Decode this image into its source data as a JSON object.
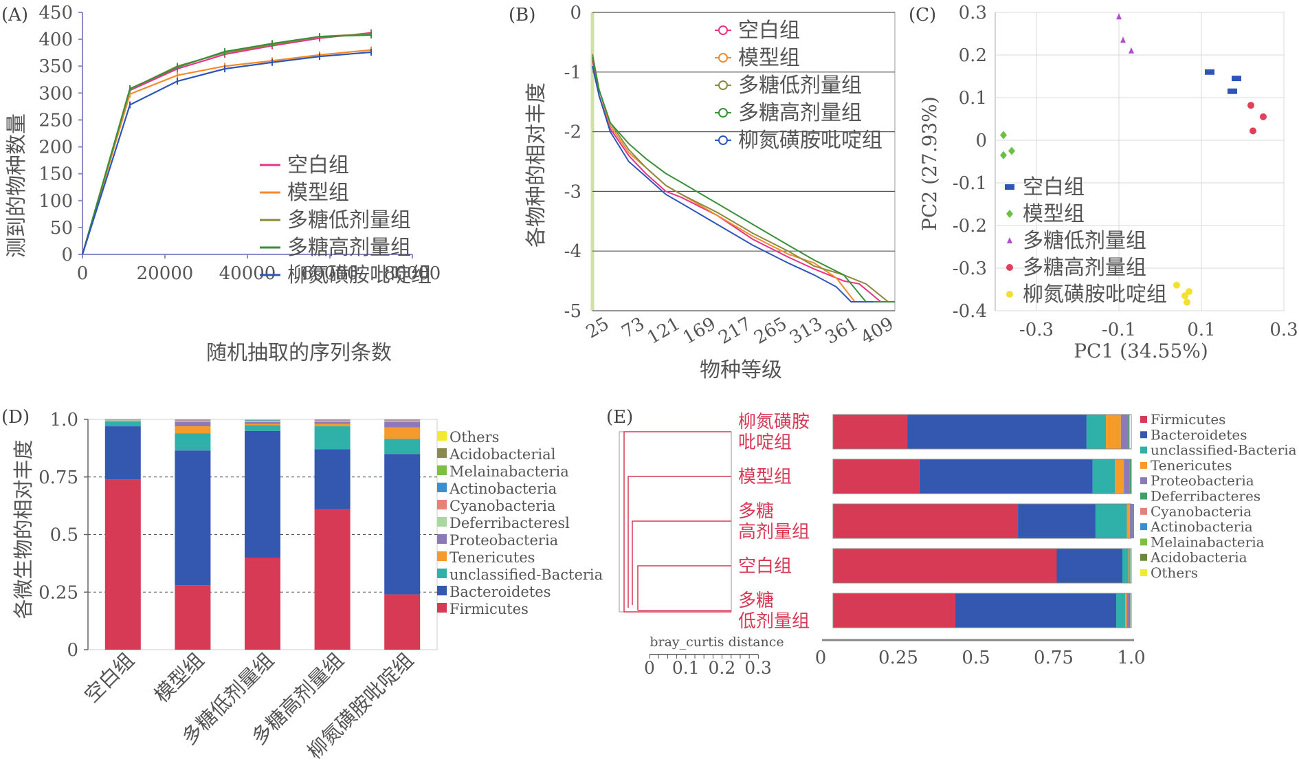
{
  "colors": {
    "空白组": "#e8338a",
    "模型组": "#f28a2e",
    "多糖低剂量组": "#8a8a3a",
    "多糖高剂量组": "#3a8f3a",
    "柳氮磺胺吡啶组": "#2e55b8",
    "Firmicutes": "#d63a55",
    "Bacteroidetes": "#3458b0",
    "unclassified-Bacteria": "#2fb0a8",
    "Tenericutes": "#f59a2b",
    "Proteobacteria": "#8c7ab8",
    "Deferribacteresl": "#a8d8a0",
    "Deferribacteres": "#3fa06a",
    "Cyanobacteria": "#e8807a",
    "Actinobacteria": "#3b8fd0",
    "Melainabacteria": "#7cc040",
    "Acidobacterial": "#8a8a50",
    "Acidobacteria": "#6a8a3a",
    "Others": "#f2ea30",
    "axis": "#8a8cc8",
    "clusterRed": "#d63a55"
  },
  "chart_data": [
    {
      "panel": "(A)",
      "type": "line",
      "xlabel": "随机抽取的序列条数",
      "ylabel": "测到的物种数量",
      "xlim": [
        0,
        80000
      ],
      "ylim": [
        0,
        450
      ],
      "xticks": [
        0,
        20000,
        40000,
        60000,
        80000
      ],
      "yticks": [
        0,
        50,
        100,
        150,
        200,
        250,
        300,
        350,
        400,
        450
      ],
      "legend": [
        "空白组",
        "模型组",
        "多糖低剂量组",
        "多糖高剂量组",
        "柳氮磺胺吡啶组"
      ],
      "series": [
        {
          "name": "空白组",
          "x": [
            0,
            11500,
            23000,
            34500,
            46000,
            57500,
            70000
          ],
          "y": [
            0,
            305,
            345,
            372,
            388,
            402,
            412
          ]
        },
        {
          "name": "模型组",
          "x": [
            0,
            11500,
            23000,
            34500,
            46000,
            57500,
            70000
          ],
          "y": [
            0,
            298,
            333,
            350,
            360,
            371,
            380
          ]
        },
        {
          "name": "多糖低剂量组",
          "x": [
            0,
            11500,
            23000,
            34500,
            46000,
            57500,
            70000
          ],
          "y": [
            0,
            307,
            350,
            375,
            390,
            405,
            410
          ]
        },
        {
          "name": "多糖高剂量组",
          "x": [
            0,
            11500,
            23000,
            34500,
            46000,
            57500,
            70000
          ],
          "y": [
            0,
            308,
            348,
            377,
            392,
            405,
            408
          ]
        },
        {
          "name": "柳氮磺胺吡啶组",
          "x": [
            0,
            11500,
            23000,
            34500,
            46000,
            57500,
            70000
          ],
          "y": [
            0,
            278,
            322,
            345,
            357,
            368,
            376
          ]
        }
      ]
    },
    {
      "panel": "(B)",
      "type": "line",
      "xlabel": "物种等级",
      "ylabel": "各物种的相对丰度",
      "xlim": [
        1,
        409
      ],
      "ylim": [
        -5,
        0
      ],
      "xticks": [
        25,
        73,
        121,
        169,
        217,
        265,
        313,
        361,
        409
      ],
      "yticks": [
        0,
        -1,
        -2,
        -3,
        -4,
        -5
      ],
      "legend": [
        "空白组",
        "模型组",
        "多糖低剂量组",
        "多糖高剂量组",
        "柳氮磺胺吡啶组"
      ],
      "series": [
        {
          "name": "空白组",
          "x": [
            1,
            10,
            25,
            50,
            73,
            100,
            121,
            169,
            217,
            265,
            300,
            340,
            361,
            390,
            409
          ],
          "y": [
            -0.8,
            -1.4,
            -1.95,
            -2.4,
            -2.7,
            -3.0,
            -3.1,
            -3.4,
            -3.8,
            -4.1,
            -4.3,
            -4.5,
            -4.55,
            -4.85,
            -4.85
          ]
        },
        {
          "name": "模型组",
          "x": [
            1,
            10,
            25,
            50,
            73,
            100,
            121,
            169,
            217,
            265,
            300,
            330,
            355,
            380
          ],
          "y": [
            -0.7,
            -1.3,
            -1.9,
            -2.35,
            -2.6,
            -2.9,
            -3.05,
            -3.4,
            -3.75,
            -4.05,
            -4.2,
            -4.45,
            -4.85,
            -4.85
          ]
        },
        {
          "name": "多糖低剂量组",
          "x": [
            1,
            10,
            25,
            50,
            73,
            100,
            121,
            169,
            217,
            265,
            300,
            340,
            370,
            400,
            409
          ],
          "y": [
            -0.7,
            -1.3,
            -1.85,
            -2.3,
            -2.6,
            -2.9,
            -3.05,
            -3.35,
            -3.7,
            -4.0,
            -4.25,
            -4.4,
            -4.55,
            -4.85,
            -4.85
          ]
        },
        {
          "name": "多糖高剂量组",
          "x": [
            1,
            10,
            25,
            50,
            73,
            100,
            121,
            169,
            217,
            265,
            300,
            340,
            370,
            409
          ],
          "y": [
            -0.75,
            -1.3,
            -1.85,
            -2.2,
            -2.45,
            -2.7,
            -2.85,
            -3.2,
            -3.55,
            -3.9,
            -4.15,
            -4.4,
            -4.85,
            -4.85
          ]
        },
        {
          "name": "柳氮磺胺吡啶组",
          "x": [
            1,
            10,
            25,
            50,
            73,
            100,
            121,
            169,
            217,
            265,
            300,
            330,
            350,
            380
          ],
          "y": [
            -0.9,
            -1.4,
            -2.0,
            -2.5,
            -2.75,
            -3.05,
            -3.2,
            -3.55,
            -3.9,
            -4.2,
            -4.4,
            -4.6,
            -4.85,
            -4.85
          ]
        }
      ]
    },
    {
      "panel": "(C)",
      "type": "scatter",
      "xlabel": "PC1 (34.55%)",
      "ylabel": "PC2 (27.93%)",
      "xlim": [
        -0.4,
        0.3
      ],
      "ylim": [
        -0.4,
        0.3
      ],
      "xticks": [
        -0.3,
        -0.1,
        0.1,
        0.3
      ],
      "yticks": [
        0.3,
        0.2,
        0.1,
        0,
        -0.1,
        -0.2,
        -0.3,
        -0.4
      ],
      "legend": [
        "空白组",
        "模型组",
        "多糖低剂量组",
        "多糖高剂量组",
        "柳氮磺胺吡啶组"
      ],
      "series": [
        {
          "name": "空白组",
          "marker": "square",
          "color": "#2e55b8",
          "x": [
            0.12,
            0.185,
            0.175
          ],
          "y": [
            0.16,
            0.145,
            0.115
          ]
        },
        {
          "name": "模型组",
          "marker": "diamond",
          "color": "#6ac040",
          "x": [
            -0.38,
            -0.36,
            -0.38
          ],
          "y": [
            0.012,
            -0.025,
            -0.035
          ]
        },
        {
          "name": "多糖低剂量组",
          "marker": "triangle",
          "color": "#b050c8",
          "x": [
            -0.1,
            -0.09,
            -0.07
          ],
          "y": [
            0.29,
            0.235,
            0.21
          ]
        },
        {
          "name": "多糖高剂量组",
          "marker": "circle",
          "color": "#e0405a",
          "x": [
            0.22,
            0.25,
            0.225
          ],
          "y": [
            0.082,
            0.055,
            0.022
          ]
        },
        {
          "name": "柳氮磺胺吡啶组",
          "marker": "circle",
          "color": "#f2e030",
          "x": [
            0.04,
            0.06,
            0.07,
            0.065
          ],
          "y": [
            -0.34,
            -0.365,
            -0.355,
            -0.38
          ]
        }
      ]
    },
    {
      "panel": "(D)",
      "type": "bar",
      "stacked": true,
      "ylabel": "各微生物的相对丰度",
      "ylim": [
        0,
        1
      ],
      "yticks": [
        "0",
        "0.25",
        "0.5",
        "0.75",
        "1.0"
      ],
      "categories": [
        "空白组",
        "模型组",
        "多糖低剂量组",
        "多糖高剂量组",
        "柳氮磺胺吡啶组"
      ],
      "legend": [
        "Others",
        "Acidobacterial",
        "Melainabacteria",
        "Actinobacteria",
        "Cyanobacteria",
        "Deferribacteresl",
        "Proteobacteria",
        "Tenericutes",
        "unclassified-Bacteria",
        "Bacteroidetes",
        "Firmicutes"
      ],
      "series": [
        {
          "name": "Firmicutes",
          "values": [
            0.74,
            0.28,
            0.4,
            0.61,
            0.24
          ]
        },
        {
          "name": "Bacteroidetes",
          "values": [
            0.23,
            0.585,
            0.55,
            0.26,
            0.61
          ]
        },
        {
          "name": "unclassified-Bacteria",
          "values": [
            0.02,
            0.075,
            0.025,
            0.1,
            0.065
          ]
        },
        {
          "name": "Tenericutes",
          "values": [
            0.002,
            0.03,
            0.005,
            0.01,
            0.05
          ]
        },
        {
          "name": "Proteobacteria",
          "values": [
            0.003,
            0.02,
            0.008,
            0.01,
            0.025
          ]
        },
        {
          "name": "Deferribacteresl",
          "values": [
            0.002,
            0.004,
            0.004,
            0.004,
            0.004
          ]
        },
        {
          "name": "Cyanobacteria",
          "values": [
            0.001,
            0.002,
            0.002,
            0.002,
            0.002
          ]
        },
        {
          "name": "Actinobacteria",
          "values": [
            0.001,
            0.002,
            0.002,
            0.002,
            0.002
          ]
        },
        {
          "name": "Melainabacteria",
          "values": [
            0.001,
            0.001,
            0.002,
            0.001,
            0.001
          ]
        },
        {
          "name": "Acidobacterial",
          "values": [
            0.001,
            0.001,
            0.001,
            0.001,
            0.001
          ]
        },
        {
          "name": "Others",
          "values": [
            0.0,
            0.0,
            0.001,
            0.0,
            0.0
          ]
        }
      ]
    },
    {
      "panel": "(E)",
      "type": "bar",
      "stacked": true,
      "orientation": "horizontal",
      "dendrogram_label": "bray_curtis distance",
      "dendrogram_ticks": [
        "0",
        "0.1",
        "0.2",
        "0.3"
      ],
      "xticks": [
        "0",
        "0.25",
        "0.5",
        "0.75",
        "1.0"
      ],
      "categories": [
        "柳氮磺胺吡啶组",
        "模型组",
        "多糖高剂量组",
        "空白组",
        "多糖低剂量组"
      ],
      "category_lines": [
        [
          "柳氮磺胺",
          "吡啶组"
        ],
        [
          "模型组"
        ],
        [
          "多糖",
          "高剂量组"
        ],
        [
          "空白组"
        ],
        [
          "多糖",
          "低剂量组"
        ]
      ],
      "legend": [
        "Firmicutes",
        "Bacteroidetes",
        "unclassified-Bacteria",
        "Tenericutes",
        "Proteobacteria",
        "Deferribacteres",
        "Cyanobacteria",
        "Actinobacteria",
        "Melainabacteria",
        "Acidobacteria",
        "Others"
      ],
      "series": [
        {
          "name": "Firmicutes",
          "values": [
            0.25,
            0.29,
            0.62,
            0.75,
            0.41
          ]
        },
        {
          "name": "Bacteroidetes",
          "values": [
            0.6,
            0.58,
            0.26,
            0.22,
            0.54
          ]
        },
        {
          "name": "unclassified-Bacteria",
          "values": [
            0.065,
            0.075,
            0.105,
            0.02,
            0.03
          ]
        },
        {
          "name": "Tenericutes",
          "values": [
            0.05,
            0.03,
            0.01,
            0.002,
            0.005
          ]
        },
        {
          "name": "Proteobacteria",
          "values": [
            0.025,
            0.02,
            0.01,
            0.003,
            0.008
          ]
        },
        {
          "name": "Deferribacteres",
          "values": [
            0.004,
            0.004,
            0.004,
            0.002,
            0.004
          ]
        }
      ]
    }
  ]
}
